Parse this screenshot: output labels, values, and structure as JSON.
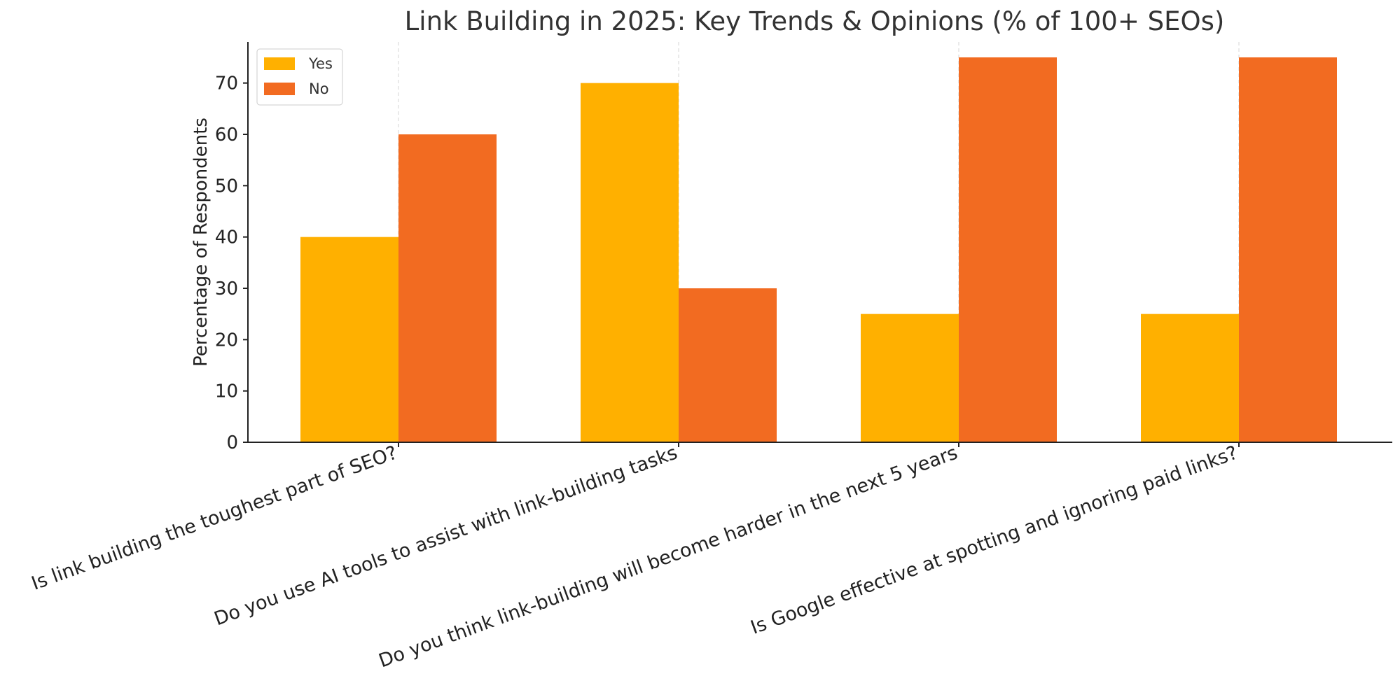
{
  "chart_data": {
    "type": "bar",
    "title": "Link Building in 2025: Key Trends & Opinions (% of 100+ SEOs)",
    "xlabel": "",
    "ylabel": "Percentage of Respondents",
    "categories": [
      "Is link building the toughest part of SEO?",
      "Do you use AI tools to assist with link-building tasks",
      "Do you think link-building will become harder in the next 5 years",
      "Is Google effective at spotting and ignoring paid links?"
    ],
    "series": [
      {
        "name": "Yes",
        "color": "#FFB000",
        "values": [
          40,
          70,
          25,
          25
        ]
      },
      {
        "name": "No",
        "color": "#F26B21",
        "values": [
          60,
          30,
          75,
          75
        ]
      }
    ],
    "ylim": [
      0,
      78
    ],
    "yticks": [
      0,
      10,
      20,
      30,
      40,
      50,
      60,
      70
    ],
    "grid": "vertical dashed at category centers",
    "legend_position": "top-left"
  }
}
